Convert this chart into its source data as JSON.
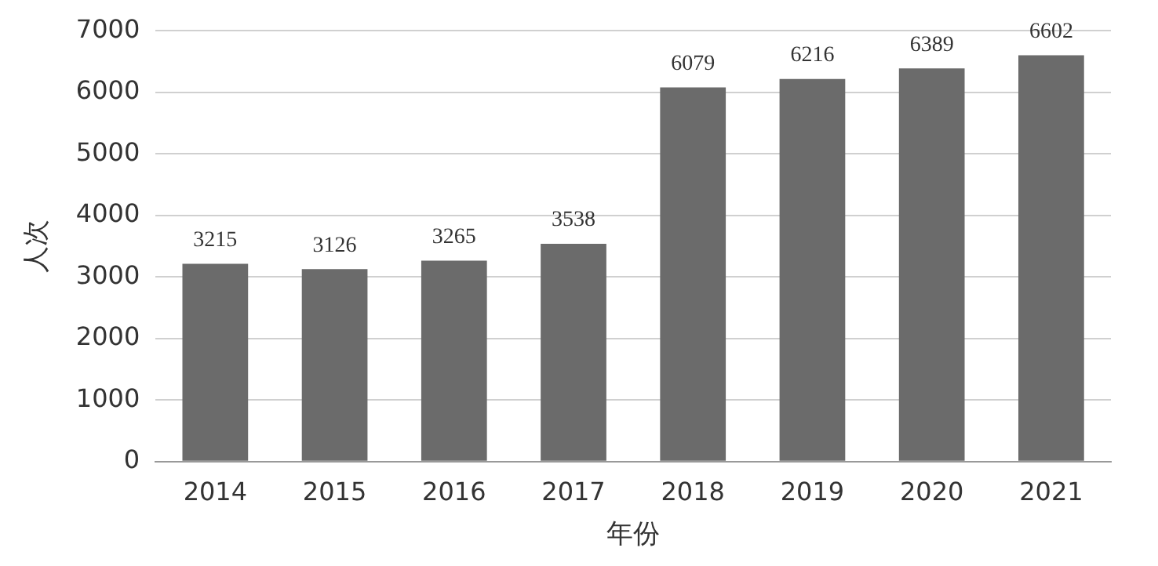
{
  "chart_data": {
    "type": "bar",
    "xlabel": "年份",
    "ylabel": "人次",
    "categories": [
      "2014",
      "2015",
      "2016",
      "2017",
      "2018",
      "2019",
      "2020",
      "2021"
    ],
    "values": [
      3215,
      3126,
      3265,
      3538,
      6079,
      6216,
      6389,
      6602
    ],
    "color": "#6b6b6b",
    "ylim": [
      0,
      7000
    ],
    "yticks": [
      0,
      1000,
      2000,
      3000,
      4000,
      5000,
      6000,
      7000
    ],
    "grid": "y",
    "data_labels": true,
    "legend": false
  }
}
